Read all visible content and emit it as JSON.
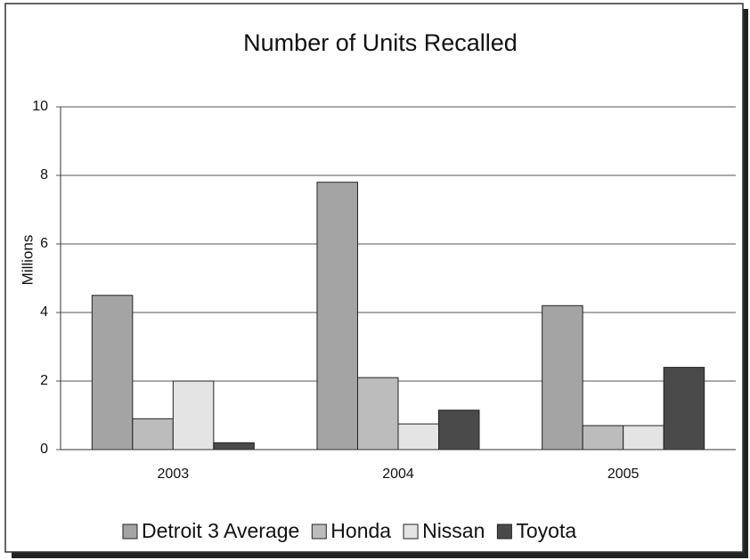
{
  "chart_data": {
    "type": "bar",
    "title": "Number of Units Recalled",
    "y_label": "Millions",
    "categories": [
      "2003",
      "2004",
      "2005"
    ],
    "series": [
      {
        "name": "Detroit 3 Average",
        "color": "#a4a4a4",
        "values": [
          4.5,
          7.8,
          4.2
        ]
      },
      {
        "name": "Honda",
        "color": "#bcbcbc",
        "values": [
          0.9,
          2.1,
          0.7
        ]
      },
      {
        "name": "Nissan",
        "color": "#e4e4e4",
        "values": [
          2.0,
          0.75,
          0.7
        ]
      },
      {
        "name": "Toyota",
        "color": "#4a4a4a",
        "values": [
          0.2,
          1.15,
          2.4
        ]
      }
    ],
    "ylim": [
      0,
      10
    ],
    "yticks": [
      0,
      2,
      4,
      6,
      8,
      10
    ],
    "grid": true,
    "legend": "bottom"
  }
}
